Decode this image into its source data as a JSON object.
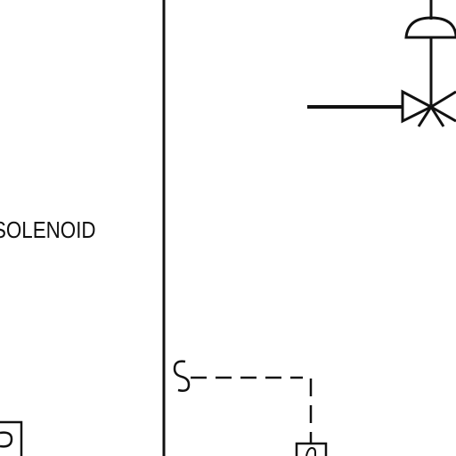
{
  "diagram": {
    "labels": {
      "solenoid": "SOLENOID"
    },
    "colors": {
      "ink": "#111111",
      "background": "#ffffff"
    }
  }
}
